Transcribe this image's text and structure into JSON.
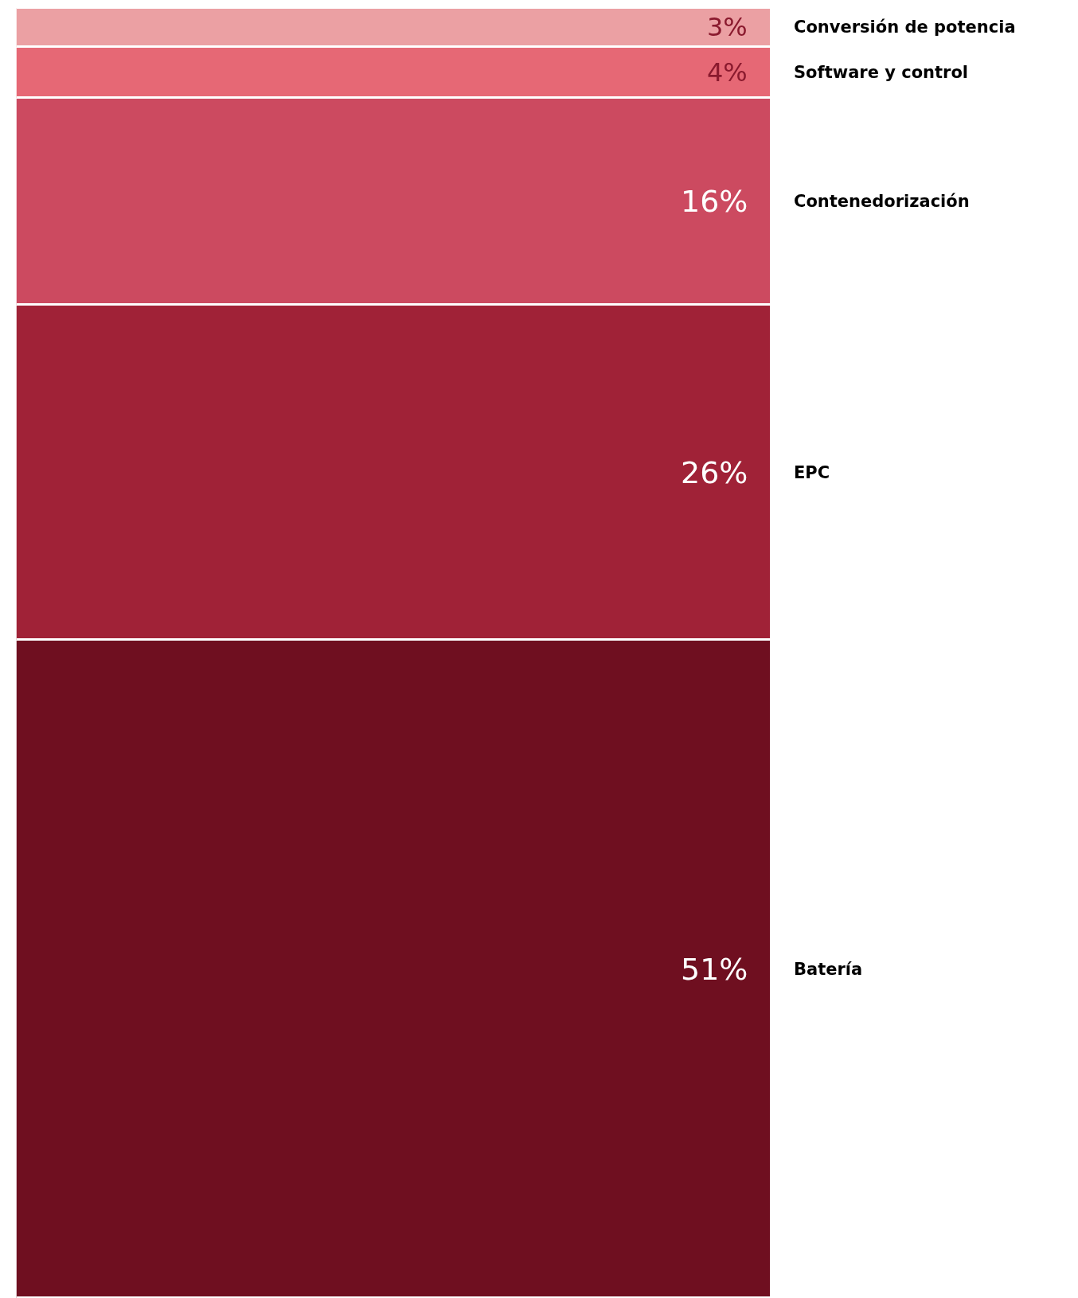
{
  "chart_data": {
    "type": "bar",
    "stacked": true,
    "categories": [
      null
    ],
    "series": [
      {
        "name": "Batería",
        "color": "#6f0f20",
        "values": [
          51
        ],
        "value_labels": [
          "51%"
        ]
      },
      {
        "name": "EPC",
        "color": "#a02237",
        "values": [
          26
        ],
        "value_labels": [
          "26%"
        ]
      },
      {
        "name": "Contenedorización",
        "color": "#cc4a60",
        "values": [
          16
        ],
        "value_labels": [
          "16%"
        ]
      },
      {
        "name": "Software y control",
        "color": "#e66875",
        "values": [
          4
        ],
        "value_labels": [
          "4%"
        ]
      },
      {
        "name": "Conversión de potencia",
        "color": "#eba0a3",
        "values": [
          3
        ],
        "value_labels": [
          "3%"
        ]
      }
    ]
  }
}
